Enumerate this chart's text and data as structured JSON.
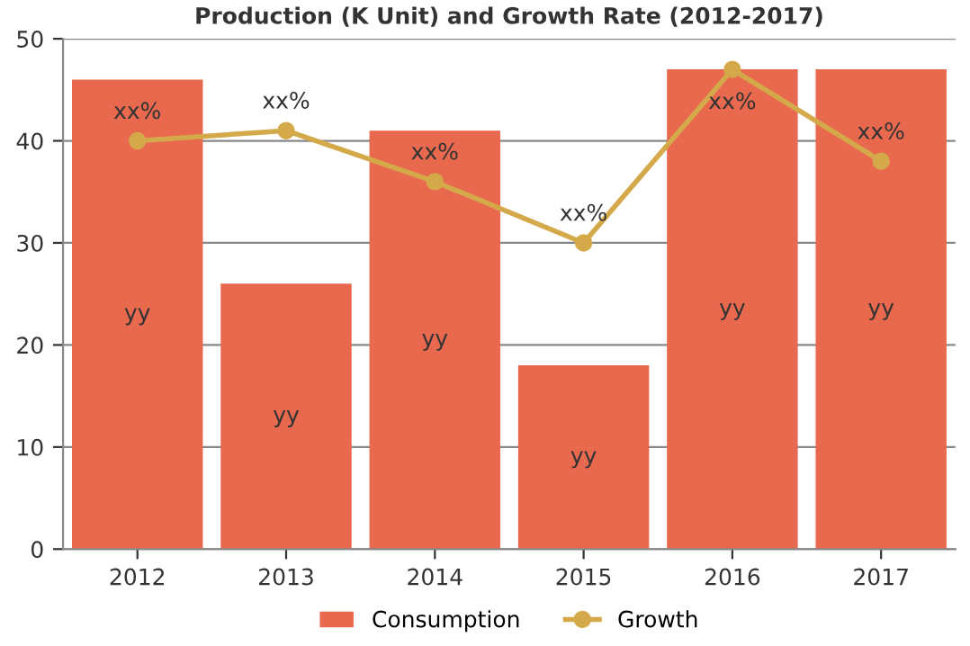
{
  "chart_data": {
    "type": "bar",
    "title": "Production (K Unit) and Growth Rate (2012-2017)",
    "categories": [
      "2012",
      "2013",
      "2014",
      "2015",
      "2016",
      "2017"
    ],
    "series": [
      {
        "name": "Consumption",
        "color": "#e8694e",
        "values": [
          46,
          26,
          41,
          18,
          47,
          47
        ],
        "value_labels": [
          "yy",
          "yy",
          "yy",
          "yy",
          "yy",
          "yy"
        ]
      },
      {
        "name": "Growth",
        "type": "line",
        "color": "#d4a94a",
        "marker": "circle",
        "values": [
          40,
          41,
          36,
          30,
          47,
          38
        ],
        "value_labels": [
          "xx%",
          "xx%",
          "xx%",
          "xx%",
          "xx%",
          "xx%"
        ]
      }
    ],
    "ylim": [
      0,
      50
    ],
    "yticks": [
      0,
      10,
      20,
      30,
      40,
      50
    ],
    "grid": "y",
    "legend": "bottom"
  }
}
